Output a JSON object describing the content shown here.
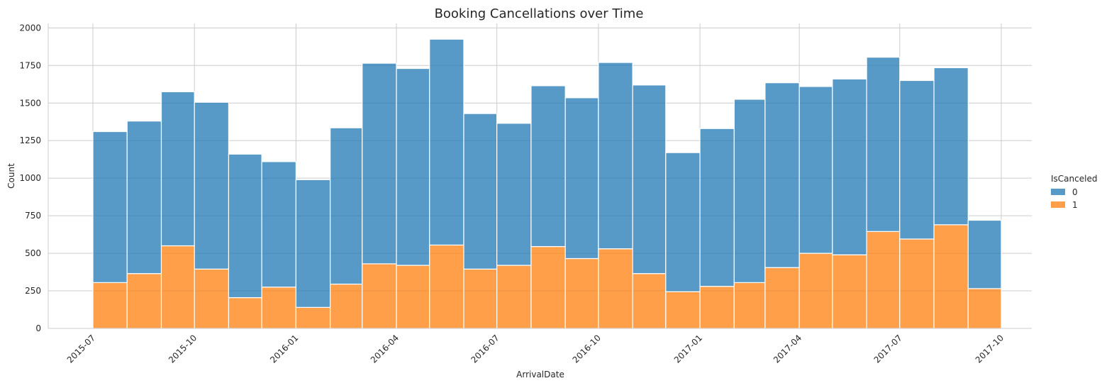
{
  "chart_data": {
    "type": "bar",
    "stacked": true,
    "title": "Booking Cancellations over Time",
    "xlabel": "ArrivalDate",
    "ylabel": "Count",
    "ylim": [
      0,
      2030
    ],
    "yticks": [
      0,
      250,
      500,
      750,
      1000,
      1250,
      1500,
      1750,
      2000
    ],
    "xtick_labels": [
      "2015-07",
      "2015-10",
      "2016-01",
      "2016-04",
      "2016-07",
      "2016-10",
      "2017-01",
      "2017-04",
      "2017-07",
      "2017-10"
    ],
    "grid": true,
    "legend": {
      "title": "IsCanceled",
      "placement": "right",
      "entries": [
        {
          "label": "0",
          "color": "#1f77b4"
        },
        {
          "label": "1",
          "color": "#ff7f0e"
        }
      ]
    },
    "bins_start": [
      "2015-07-01",
      "2015-08-01",
      "2015-09-01",
      "2015-10-01",
      "2015-11-01",
      "2015-12-01",
      "2016-01-01",
      "2016-02-01",
      "2016-03-01",
      "2016-04-01",
      "2016-05-01",
      "2016-06-01",
      "2016-07-01",
      "2016-08-01",
      "2016-09-01",
      "2016-10-01",
      "2016-11-01",
      "2016-12-01",
      "2017-01-01",
      "2017-02-01",
      "2017-03-01",
      "2017-04-01",
      "2017-05-01",
      "2017-06-01",
      "2017-07-01",
      "2017-08-01",
      "2017-09-01"
    ],
    "series": [
      {
        "name": "1",
        "color": "#ff7f0e",
        "values": [
          305,
          365,
          550,
          395,
          205,
          275,
          140,
          295,
          430,
          420,
          555,
          395,
          420,
          545,
          465,
          530,
          365,
          245,
          280,
          305,
          405,
          500,
          490,
          645,
          595,
          690,
          265
        ]
      },
      {
        "name": "0",
        "color": "#1f77b4",
        "values": [
          1005,
          1015,
          1025,
          1110,
          955,
          835,
          850,
          1040,
          1335,
          1310,
          1370,
          1035,
          945,
          1070,
          1070,
          1240,
          1255,
          925,
          1050,
          1220,
          1230,
          1110,
          1170,
          1160,
          1055,
          1045,
          455
        ]
      }
    ]
  }
}
